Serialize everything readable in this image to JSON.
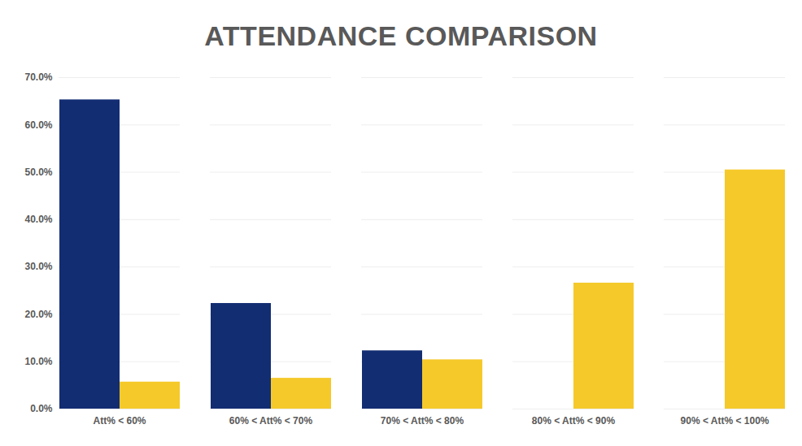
{
  "chart_data": {
    "type": "bar",
    "title": "ATTENDANCE COMPARISON",
    "categories": [
      "Att% < 60%",
      "60% < Att% < 70%",
      "70% < Att% < 80%",
      "80% < Att% < 90%",
      "90% < Att% < 100%"
    ],
    "series": [
      {
        "color": "#132d73",
        "values": [
          65.3,
          22.3,
          12.3,
          0,
          0
        ]
      },
      {
        "color": "#f5c92a",
        "values": [
          5.7,
          6.5,
          10.4,
          26.6,
          50.5
        ]
      }
    ],
    "ylim": [
      0,
      70
    ],
    "yticks": [
      {
        "value": 0,
        "label": "0.0%"
      },
      {
        "value": 10,
        "label": "10.0%"
      },
      {
        "value": 20,
        "label": "20.0%"
      },
      {
        "value": 30,
        "label": "30.0%"
      },
      {
        "value": 40,
        "label": "40.0%"
      },
      {
        "value": 50,
        "label": "50.0%"
      },
      {
        "value": 60,
        "label": "60.0%"
      },
      {
        "value": 70,
        "label": "70.0%"
      }
    ],
    "grid": true
  }
}
